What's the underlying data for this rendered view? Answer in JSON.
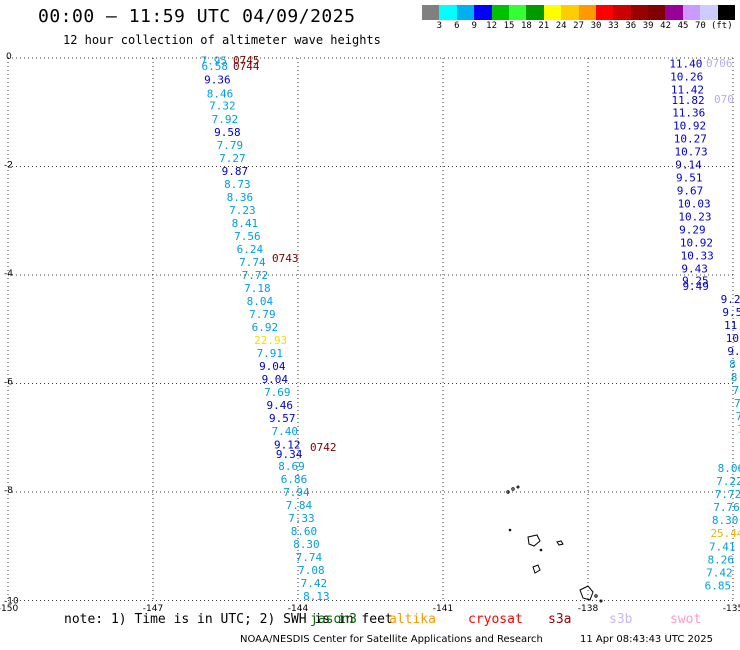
{
  "title": "00:00 – 11:59 UTC 04/09/2025",
  "subtitle": "12 hour collection of altimeter wave heights",
  "colorbar": {
    "colors": [
      "#808080",
      "#00ffff",
      "#00b0f0",
      "#0000ff",
      "#00c000",
      "#33ff33",
      "#009900",
      "#ffff00",
      "#ffcc00",
      "#ff9900",
      "#ff0000",
      "#cc0000",
      "#990000",
      "#800000",
      "#990099",
      "#cc99ff",
      "#ccccff",
      "#000000"
    ],
    "labels": [
      "3",
      "6",
      "9",
      "12",
      "15",
      "18",
      "21",
      "24",
      "27",
      "30",
      "33",
      "36",
      "39",
      "42",
      "45",
      "70",
      "(ft)"
    ]
  },
  "axes": {
    "lon_labels": [
      "-150",
      "-147",
      "-144",
      "-141",
      "-138",
      "-135"
    ],
    "lat_labels": [
      "0",
      "-2",
      "-4",
      "-6",
      "-8",
      "-10"
    ]
  },
  "tracks": {
    "left": [
      {
        "v": "7.95",
        "c": "#00a0e0",
        "lat": -0.05
      },
      {
        "v": "6.58",
        "c": "#00a0e0",
        "lat": -0.15
      },
      {
        "v": "9.36",
        "c": "#0000cc",
        "lat": -0.4
      },
      {
        "v": "8.46",
        "c": "#00a0e0",
        "lat": -0.65
      },
      {
        "v": "7.32",
        "c": "#00a0e0",
        "lat": -0.88
      },
      {
        "v": "7.92",
        "c": "#00a0e0",
        "lat": -1.12
      },
      {
        "v": "9.58",
        "c": "#0000cc",
        "lat": -1.36
      },
      {
        "v": "7.79",
        "c": "#00a0e0",
        "lat": -1.6
      },
      {
        "v": "7.27",
        "c": "#00a0e0",
        "lat": -1.84
      },
      {
        "v": "9.87",
        "c": "#0000cc",
        "lat": -2.08
      },
      {
        "v": "8.73",
        "c": "#00a0e0",
        "lat": -2.32
      },
      {
        "v": "8.36",
        "c": "#00a0e0",
        "lat": -2.56
      },
      {
        "v": "7.23",
        "c": "#00a0e0",
        "lat": -2.8
      },
      {
        "v": "8.41",
        "c": "#00a0e0",
        "lat": -3.04
      },
      {
        "v": "7.56",
        "c": "#00a0e0",
        "lat": -3.28
      },
      {
        "v": "6.24",
        "c": "#00a0e0",
        "lat": -3.52
      },
      {
        "v": "7.74",
        "c": "#00a0e0",
        "lat": -3.76
      },
      {
        "v": "7.72",
        "c": "#00a0e0",
        "lat": -4.0
      },
      {
        "v": "7.18",
        "c": "#00a0e0",
        "lat": -4.24
      },
      {
        "v": "8.04",
        "c": "#00a0e0",
        "lat": -4.48
      },
      {
        "v": "7.79",
        "c": "#00a0e0",
        "lat": -4.72
      },
      {
        "v": "6.92",
        "c": "#00a0e0",
        "lat": -4.96
      },
      {
        "v": "22.93",
        "c": "#f0e000",
        "lat": -5.2
      },
      {
        "v": "7.91",
        "c": "#00a0e0",
        "lat": -5.44
      },
      {
        "v": "9.04",
        "c": "#0000cc",
        "lat": -5.68
      },
      {
        "v": "9.04",
        "c": "#0000cc",
        "lat": -5.92
      },
      {
        "v": "7.69",
        "c": "#00a0e0",
        "lat": -6.16
      },
      {
        "v": "9.46",
        "c": "#0000cc",
        "lat": -6.4
      },
      {
        "v": "9.57",
        "c": "#0000cc",
        "lat": -6.64
      },
      {
        "v": "7.40",
        "c": "#00a0e0",
        "lat": -6.88
      },
      {
        "v": "9.12",
        "c": "#0000cc",
        "lat": -7.12
      },
      {
        "v": "9.34",
        "c": "#0000cc",
        "lat": -7.3
      },
      {
        "v": "8.69",
        "c": "#00a0e0",
        "lat": -7.52
      },
      {
        "v": "6.86",
        "c": "#00a0e0",
        "lat": -7.76
      },
      {
        "v": "7.94",
        "c": "#00a0e0",
        "lat": -8.0
      },
      {
        "v": "7.84",
        "c": "#00a0e0",
        "lat": -8.24
      },
      {
        "v": "7.33",
        "c": "#00a0e0",
        "lat": -8.48
      },
      {
        "v": "8.60",
        "c": "#00a0e0",
        "lat": -8.72
      },
      {
        "v": "8.30",
        "c": "#00a0e0",
        "lat": -8.96
      },
      {
        "v": "7.74",
        "c": "#00a0e0",
        "lat": -9.2
      },
      {
        "v": "7.08",
        "c": "#00a0e0",
        "lat": -9.44
      },
      {
        "v": "7.42",
        "c": "#00a0e0",
        "lat": -9.68
      },
      {
        "v": "8.13",
        "c": "#00a0e0",
        "lat": -9.92
      }
    ],
    "right": [
      {
        "v": "11.40",
        "c": "#0000cc",
        "lat": -0.1
      },
      {
        "v": "10.26",
        "c": "#0000cc",
        "lat": -0.34
      },
      {
        "v": "11.42",
        "c": "#0000cc",
        "lat": -0.58
      },
      {
        "v": "11.82",
        "c": "#0000cc",
        "lat": -0.77
      },
      {
        "v": "11.36",
        "c": "#0000cc",
        "lat": -1.0
      },
      {
        "v": "10.92",
        "c": "#0000cc",
        "lat": -1.24
      },
      {
        "v": "10.27",
        "c": "#0000cc",
        "lat": -1.48
      },
      {
        "v": "10.73",
        "c": "#0000cc",
        "lat": -1.72
      },
      {
        "v": "9.14",
        "c": "#0000cc",
        "lat": -1.96
      },
      {
        "v": "9.51",
        "c": "#0000cc",
        "lat": -2.2
      },
      {
        "v": "9.67",
        "c": "#0000cc",
        "lat": -2.44
      },
      {
        "v": "10.03",
        "c": "#0000cc",
        "lat": -2.68
      },
      {
        "v": "10.23",
        "c": "#0000cc",
        "lat": -2.92
      },
      {
        "v": "9.29",
        "c": "#0000cc",
        "lat": -3.16
      },
      {
        "v": "10.92",
        "c": "#0000cc",
        "lat": -3.4
      },
      {
        "v": "10.33",
        "c": "#0000cc",
        "lat": -3.64
      },
      {
        "v": "9.43",
        "c": "#0000cc",
        "lat": -3.88
      },
      {
        "v": "9.25",
        "c": "#0000cc",
        "lat": -4.1
      },
      {
        "v": "9.49",
        "c": "#0000cc",
        "lat": -4.2
      },
      {
        "v": "9.20",
        "c": "#0000cc",
        "lat": -4.44
      },
      {
        "v": "9.56",
        "c": "#0000cc",
        "lat": -4.68
      },
      {
        "v": "11.1",
        "c": "#0000cc",
        "lat": -4.92
      },
      {
        "v": "10.",
        "c": "#0000cc",
        "lat": -5.16
      },
      {
        "v": "9.",
        "c": "#0000cc",
        "lat": -5.4
      },
      {
        "v": "8",
        "c": "#00a0e0",
        "lat": -5.64
      },
      {
        "v": "8",
        "c": "#00a0e0",
        "lat": -5.88
      },
      {
        "v": "7",
        "c": "#00a0e0",
        "lat": -6.12
      },
      {
        "v": "7",
        "c": "#00a0e0",
        "lat": -6.36
      },
      {
        "v": "7",
        "c": "#00a0e0",
        "lat": -6.6
      },
      {
        "v": "7.",
        "c": "#00a0e0",
        "lat": -6.84
      },
      {
        "v": "7.",
        "c": "#00a0e0",
        "lat": -7.08
      },
      {
        "v": "7.3",
        "c": "#00a0e0",
        "lat": -7.32
      },
      {
        "v": "8.06",
        "c": "#00a0e0",
        "lat": -7.56
      },
      {
        "v": "7.22",
        "c": "#00a0e0",
        "lat": -7.8
      },
      {
        "v": "7.72",
        "c": "#00a0e0",
        "lat": -8.04
      },
      {
        "v": "7.76",
        "c": "#00a0e0",
        "lat": -8.28
      },
      {
        "v": "8.30",
        "c": "#00a0e0",
        "lat": -8.52
      },
      {
        "v": "25.44",
        "c": "#f0b000",
        "lat": -8.76
      },
      {
        "v": "7.41",
        "c": "#00a0e0",
        "lat": -9.0
      },
      {
        "v": "8.26",
        "c": "#00a0e0",
        "lat": -9.24
      },
      {
        "v": "7.42",
        "c": "#00a0e0",
        "lat": -9.48
      },
      {
        "v": "6.85",
        "c": "#00a0e0",
        "lat": -9.72
      }
    ]
  },
  "time_labels": [
    {
      "t": "0745",
      "c": "#800000",
      "lat": 0.0
    },
    {
      "t": "0744",
      "c": "#800000",
      "lat": -0.16
    },
    {
      "t": "0743",
      "c": "#800000",
      "lat": -3.72
    },
    {
      "t": "0742",
      "c": "#800000",
      "lat": -7.3
    },
    {
      "t": "0706",
      "c": "#b8a8f0",
      "lat": -0.13
    },
    {
      "t": "070",
      "c": "#b8a8f0",
      "lat": -0.83
    }
  ],
  "note": {
    "text": "note: 1) Time is in UTC; 2) SWH is in feet",
    "satellites": [
      {
        "name": "jason3",
        "color": "#006600"
      },
      {
        "name": "altika",
        "color": "#ff9900"
      },
      {
        "name": "cryosat",
        "color": "#ff0000"
      },
      {
        "name": "s3a",
        "color": "#990000"
      },
      {
        "name": "s3b",
        "color": "#c8b8f0"
      },
      {
        "name": "swot",
        "color": "#ff99cc"
      }
    ]
  },
  "credit": "NOAA/NESDIS Center for Satellite Applications and Research",
  "timestamp": "11 Apr 08:43:43 UTC 2025"
}
